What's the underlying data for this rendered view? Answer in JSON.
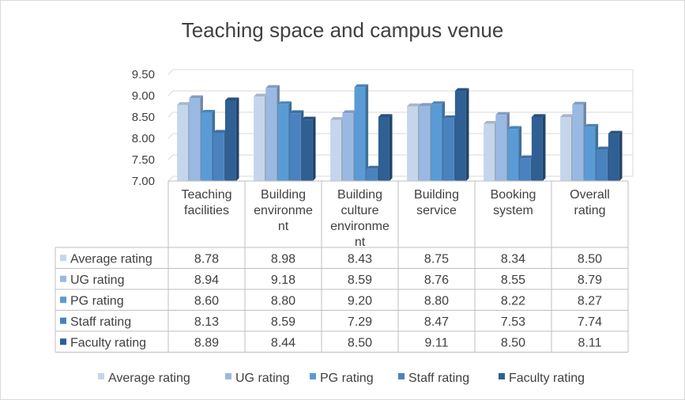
{
  "chart_data": {
    "type": "bar",
    "title": "Teaching space and campus venue",
    "categories": [
      [
        "Teaching",
        "facilities"
      ],
      [
        "Building",
        "environme",
        "nt"
      ],
      [
        "Building",
        "culture",
        "environme",
        "nt"
      ],
      [
        "Building",
        "service"
      ],
      [
        "Booking",
        "system"
      ],
      [
        "Overall",
        "rating"
      ]
    ],
    "series": [
      {
        "name": "Average rating",
        "color": "#c5d6ec",
        "values": [
          8.78,
          8.98,
          8.43,
          8.75,
          8.34,
          8.5
        ]
      },
      {
        "name": "UG rating",
        "color": "#9ab9e2",
        "values": [
          8.94,
          9.18,
          8.59,
          8.76,
          8.55,
          8.79
        ]
      },
      {
        "name": "PG rating",
        "color": "#5b9bd5",
        "values": [
          8.6,
          8.8,
          9.2,
          8.8,
          8.22,
          8.27
        ]
      },
      {
        "name": "Staff rating",
        "color": "#4a82bf",
        "values": [
          8.13,
          8.59,
          7.29,
          8.47,
          7.53,
          7.74
        ]
      },
      {
        "name": "Faculty rating",
        "color": "#2f5f93",
        "values": [
          8.89,
          8.44,
          8.5,
          9.11,
          8.5,
          8.11
        ]
      }
    ],
    "table_values": [
      [
        "8.78",
        "8.98",
        "8.43",
        "8.75",
        "8.34",
        "8.50"
      ],
      [
        "8.94",
        "9.18",
        "8.59",
        "8.76",
        "8.55",
        "8.79"
      ],
      [
        "8.60",
        "8.80",
        "9.20",
        "8.80",
        "8.22",
        "8.27"
      ],
      [
        "8.13",
        "8.59",
        "7.29",
        "8.47",
        "7.53",
        "7.74"
      ],
      [
        "8.89",
        "8.44",
        "8.50",
        "9.11",
        "8.50",
        "8.11"
      ]
    ],
    "yticks": [
      "7.00",
      "7.50",
      "8.00",
      "8.50",
      "9.00",
      "9.50"
    ],
    "ylim": [
      7.0,
      9.5
    ],
    "legend_position": "bottom",
    "grid": true
  }
}
